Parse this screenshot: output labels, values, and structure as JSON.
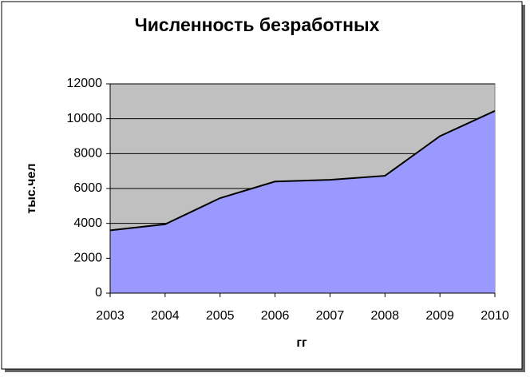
{
  "chart_data": {
    "type": "area",
    "title": "Численность безработных",
    "x_label": "гг",
    "y_label": "тыс.чел",
    "x": [
      2003,
      2004,
      2005,
      2006,
      2007,
      2008,
      2009,
      2010
    ],
    "values": [
      3600,
      3950,
      5450,
      6400,
      6500,
      6730,
      9000,
      10450
    ],
    "color": "#9999ff",
    "line_color": "#000000",
    "plot_background": "#c0c0c0",
    "xlim": [
      2003,
      2010
    ],
    "xticks": [
      2003,
      2004,
      2005,
      2006,
      2007,
      2008,
      2009,
      2010
    ],
    "ylim": [
      0,
      12000
    ],
    "yticks": [
      0,
      2000,
      4000,
      6000,
      8000,
      10000,
      12000
    ],
    "grid": true
  }
}
